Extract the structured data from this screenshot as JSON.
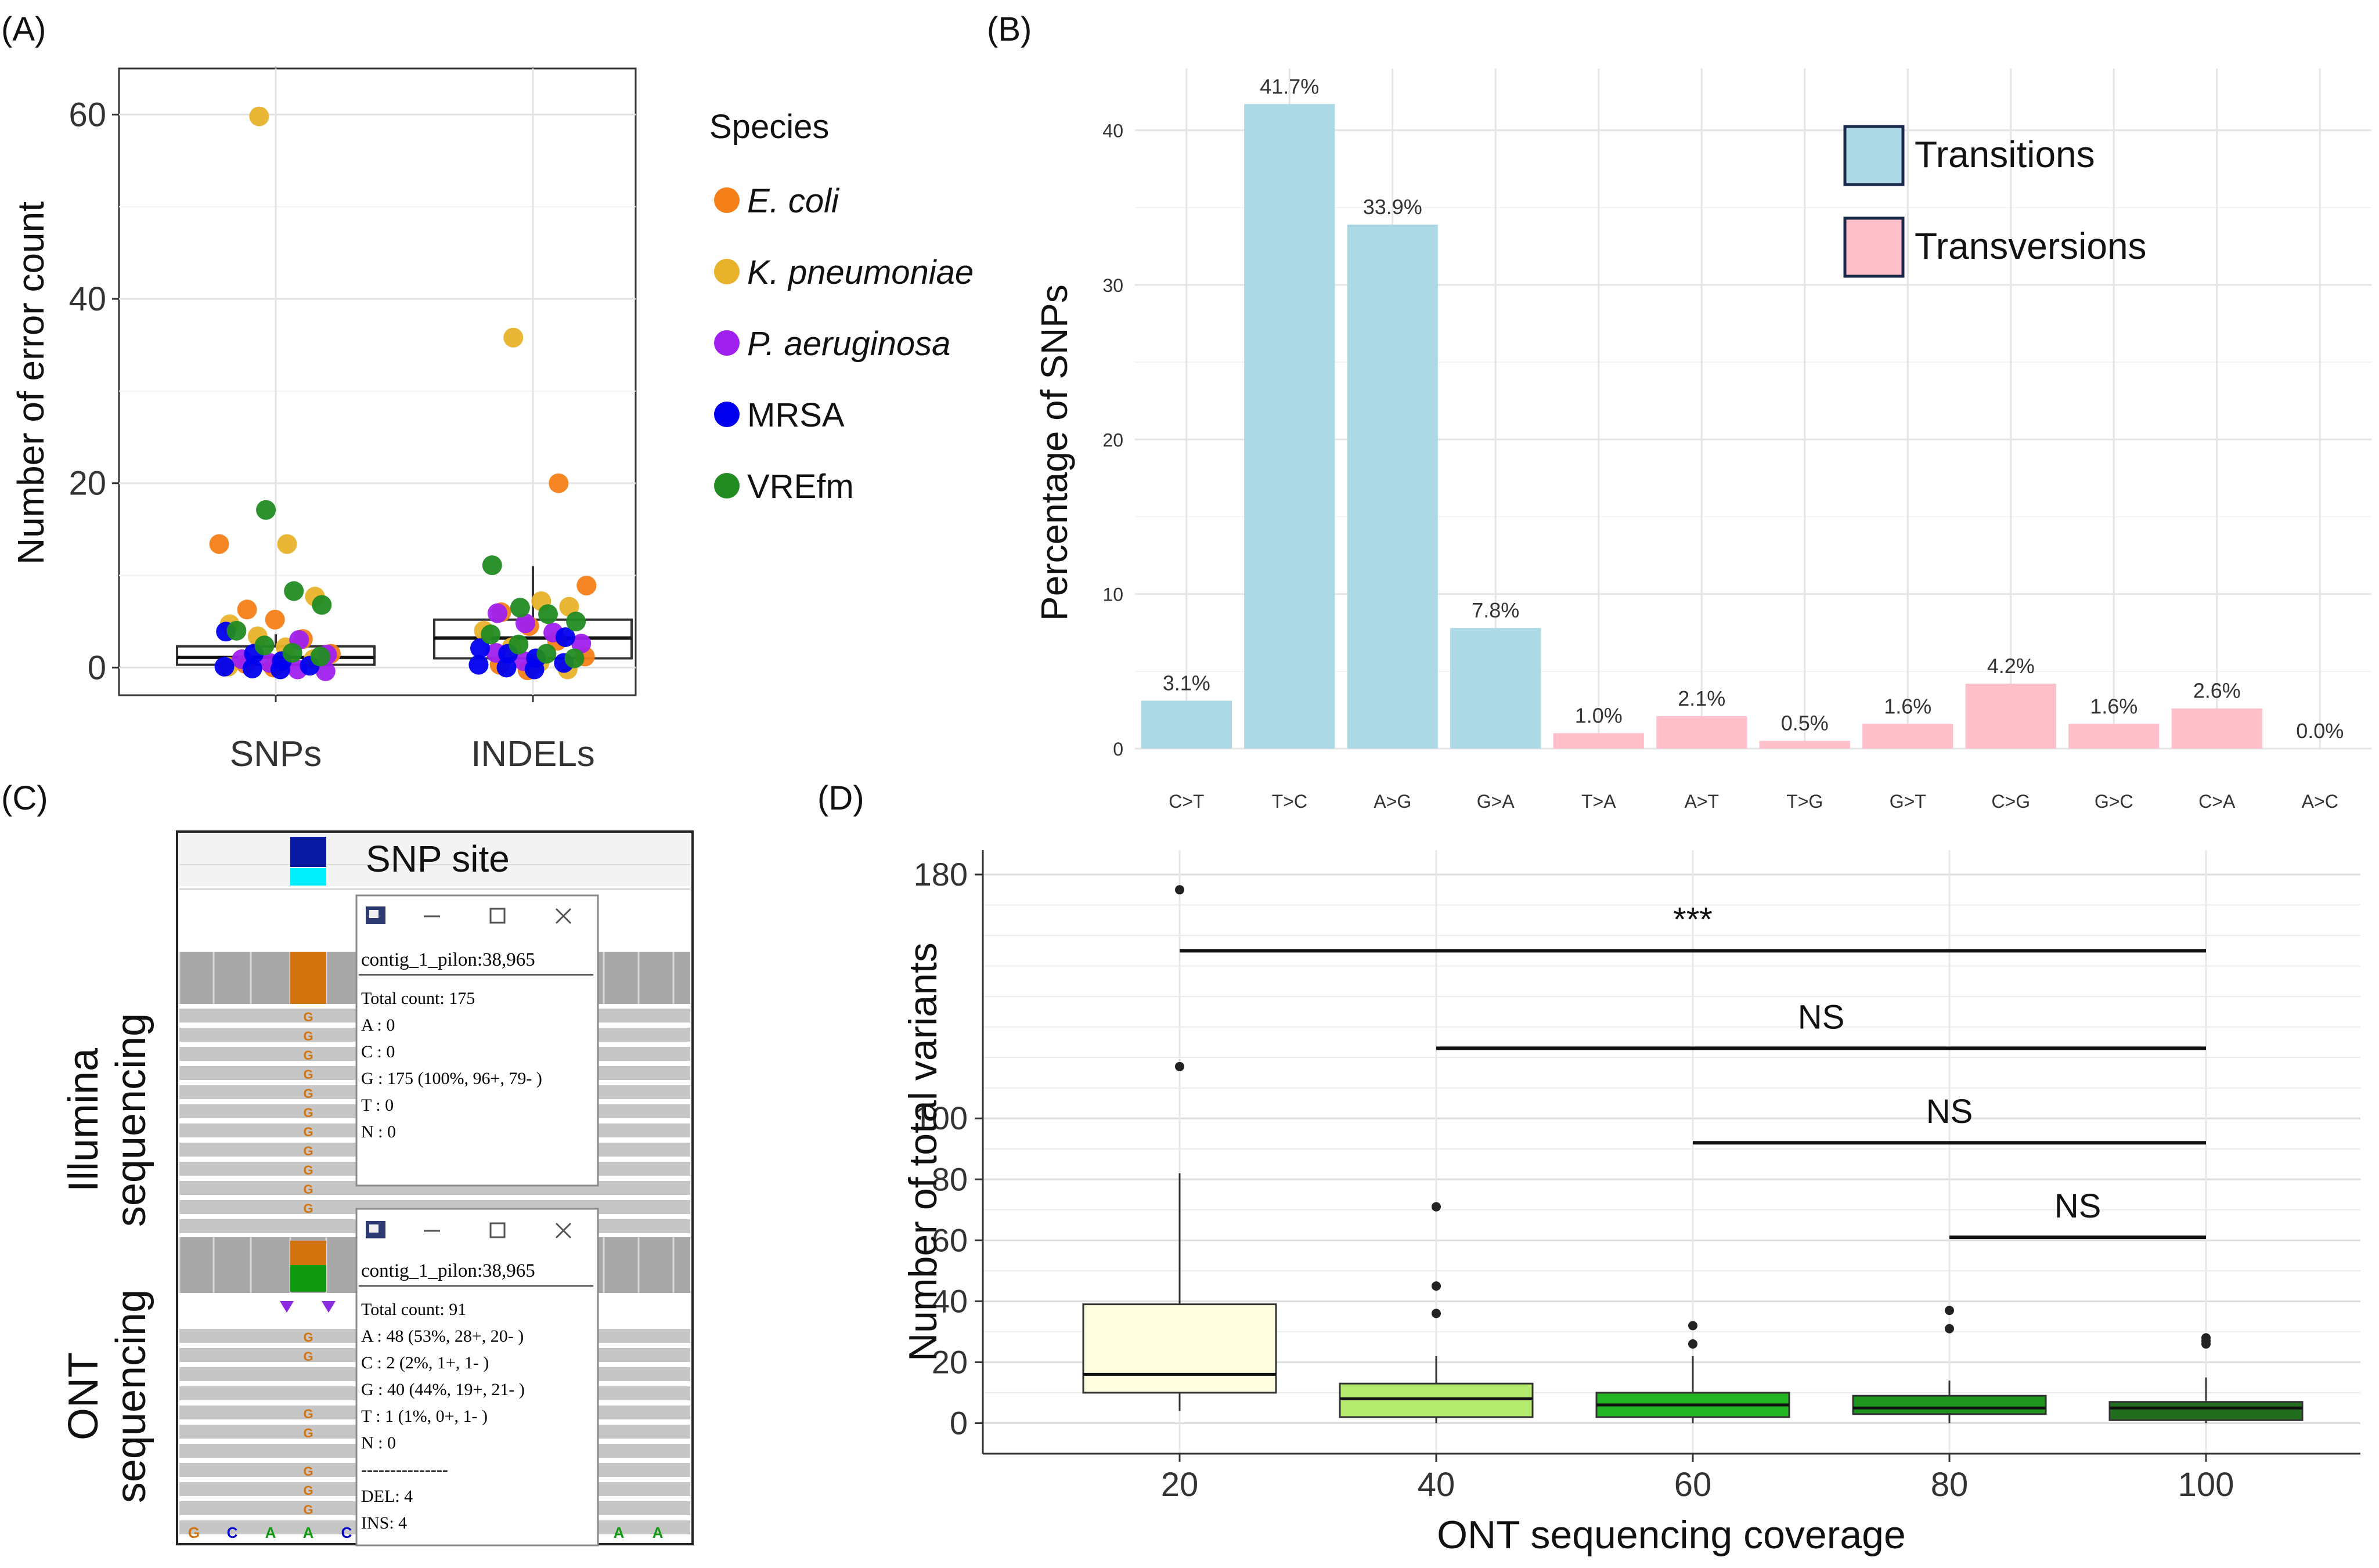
{
  "panel_labels": {
    "a": "(A)",
    "b": "(B)",
    "c": "(C)",
    "d": "(D)"
  },
  "chart_data": [
    {
      "type": "scatter",
      "panel": "(A)",
      "ylabel": "Number of error count",
      "xlabel": "",
      "categories": [
        "SNPs",
        "INDELs"
      ],
      "ylim": [
        -3,
        65
      ],
      "yticks": [
        0,
        20,
        40,
        60
      ],
      "grid": true,
      "legend": {
        "title": "Species",
        "position": "right"
      },
      "series": [
        {
          "name": "E. coli",
          "italic": true,
          "color": "#F57F17",
          "points": [
            [
              "SNPs",
              13.4
            ],
            [
              "SNPs",
              6.3
            ],
            [
              "SNPs",
              5.2
            ],
            [
              "SNPs",
              3.1
            ],
            [
              "SNPs",
              1.5
            ],
            [
              "SNPs",
              0.4
            ],
            [
              "SNPs",
              0.0
            ],
            [
              "INDELs",
              20
            ],
            [
              "INDELs",
              8.9
            ],
            [
              "INDELs",
              6.0
            ],
            [
              "INDELs",
              4.5
            ],
            [
              "INDELs",
              2.9
            ],
            [
              "INDELs",
              1.2
            ],
            [
              "INDELs",
              0.3
            ],
            [
              "INDELs",
              -0.3
            ]
          ]
        },
        {
          "name": "K. pneumoniae",
          "italic": true,
          "color": "#E8B22A",
          "points": [
            [
              "SNPs",
              59.8
            ],
            [
              "SNPs",
              13.4
            ],
            [
              "SNPs",
              7.7
            ],
            [
              "SNPs",
              4.7
            ],
            [
              "SNPs",
              3.4
            ],
            [
              "SNPs",
              2.2
            ],
            [
              "SNPs",
              0.9
            ],
            [
              "SNPs",
              0.1
            ],
            [
              "INDELs",
              35.8
            ],
            [
              "INDELs",
              7.2
            ],
            [
              "INDELs",
              6.6
            ],
            [
              "INDELs",
              4.0
            ],
            [
              "INDELs",
              2.2
            ],
            [
              "INDELs",
              0.6
            ],
            [
              "INDELs",
              -0.2
            ]
          ]
        },
        {
          "name": "P. aeruginosa",
          "italic": true,
          "color": "#A020F0",
          "points": [
            [
              "SNPs",
              3.0
            ],
            [
              "SNPs",
              1.4
            ],
            [
              "SNPs",
              0.9
            ],
            [
              "SNPs",
              0.5
            ],
            [
              "SNPs",
              -0.2
            ],
            [
              "SNPs",
              -0.4
            ],
            [
              "INDELs",
              5.9
            ],
            [
              "INDELs",
              4.8
            ],
            [
              "INDELs",
              3.8
            ],
            [
              "INDELs",
              2.6
            ],
            [
              "INDELs",
              1.6
            ],
            [
              "INDELs",
              0.7
            ]
          ]
        },
        {
          "name": "MRSA",
          "italic": false,
          "color": "#0000EE",
          "points": [
            [
              "SNPs",
              3.9
            ],
            [
              "SNPs",
              1.5
            ],
            [
              "SNPs",
              0.7
            ],
            [
              "SNPs",
              0.2
            ],
            [
              "SNPs",
              0.1
            ],
            [
              "SNPs",
              -0.1
            ],
            [
              "SNPs",
              -0.2
            ],
            [
              "INDELs",
              3.3
            ],
            [
              "INDELs",
              2.1
            ],
            [
              "INDELs",
              1.5
            ],
            [
              "INDELs",
              1.0
            ],
            [
              "INDELs",
              0.5
            ],
            [
              "INDELs",
              0.3
            ],
            [
              "INDELs",
              0.0
            ],
            [
              "INDELs",
              -0.2
            ]
          ]
        },
        {
          "name": "VREfm",
          "italic": false,
          "color": "#228B22",
          "points": [
            [
              "SNPs",
              17.1
            ],
            [
              "SNPs",
              8.3
            ],
            [
              "SNPs",
              6.8
            ],
            [
              "SNPs",
              4.0
            ],
            [
              "SNPs",
              2.4
            ],
            [
              "SNPs",
              1.6
            ],
            [
              "SNPs",
              1.2
            ],
            [
              "INDELs",
              11.1
            ],
            [
              "INDELs",
              6.5
            ],
            [
              "INDELs",
              5.8
            ],
            [
              "INDELs",
              5.0
            ],
            [
              "INDELs",
              3.6
            ],
            [
              "INDELs",
              2.5
            ],
            [
              "INDELs",
              1.5
            ],
            [
              "INDELs",
              1.0
            ]
          ]
        }
      ],
      "boxes": [
        {
          "category": "SNPs",
          "q1": 0.3,
          "median": 1.1,
          "q3": 2.3,
          "whisker_high": 3.6
        },
        {
          "category": "INDELs",
          "q1": 1.0,
          "median": 3.2,
          "q3": 5.2,
          "whisker_high": 11.0
        }
      ]
    },
    {
      "type": "bar",
      "panel": "(B)",
      "ylabel": "Percentage of SNPs",
      "xlabel": "",
      "categories": [
        "C>T",
        "T>C",
        "A>G",
        "G>A",
        "T>A",
        "A>T",
        "T>G",
        "G>T",
        "C>G",
        "G>C",
        "C>A",
        "A>C"
      ],
      "values": [
        3.1,
        41.7,
        33.9,
        7.8,
        1.0,
        2.1,
        0.5,
        1.6,
        4.2,
        1.6,
        2.6,
        0.0
      ],
      "labels": [
        "3.1%",
        "41.7%",
        "33.9%",
        "7.8%",
        "1.0%",
        "2.1%",
        "0.5%",
        "1.6%",
        "4.2%",
        "1.6%",
        "2.6%",
        "0.0%"
      ],
      "groups": [
        "Transitions",
        "Transitions",
        "Transitions",
        "Transitions",
        "Transversions",
        "Transversions",
        "Transversions",
        "Transversions",
        "Transversions",
        "Transversions",
        "Transversions",
        "Transversions"
      ],
      "ylim": [
        0,
        44
      ],
      "yticks": [
        0,
        10,
        20,
        30,
        40
      ],
      "grid": true,
      "legend": {
        "position": "top-right",
        "items": [
          {
            "name": "Transitions",
            "color": "#ADD8E6"
          },
          {
            "name": "Transversions",
            "color": "#FFC0CB"
          }
        ]
      }
    },
    {
      "type": "box",
      "panel": "(D)",
      "xlabel": "ONT sequencing coverage",
      "ylabel": "Number of total variants",
      "categories": [
        "20",
        "40",
        "60",
        "80",
        "100"
      ],
      "yticks": [
        0,
        20,
        40,
        60,
        80,
        100,
        180
      ],
      "ylim": [
        -10,
        188
      ],
      "grid": true,
      "boxes": [
        {
          "x": "20",
          "q1": 10,
          "median": 16,
          "q3": 39,
          "whisker_low": 4,
          "whisker_high": 82,
          "outliers": [
            117,
            175
          ],
          "color": "#FFFFE0"
        },
        {
          "x": "40",
          "q1": 2,
          "median": 8,
          "q3": 13,
          "whisker_low": 0,
          "whisker_high": 22,
          "outliers": [
            36,
            45,
            71
          ],
          "color": "#B4EB6E"
        },
        {
          "x": "60",
          "q1": 2,
          "median": 6,
          "q3": 10,
          "whisker_low": 0,
          "whisker_high": 22,
          "outliers": [
            26,
            32
          ],
          "color": "#22B422"
        },
        {
          "x": "80",
          "q1": 3,
          "median": 5,
          "q3": 9,
          "whisker_low": 0,
          "whisker_high": 14,
          "outliers": [
            31,
            37
          ],
          "color": "#1E961E"
        },
        {
          "x": "100",
          "q1": 1,
          "median": 5,
          "q3": 7,
          "whisker_low": 0,
          "whisker_high": 15,
          "outliers": [
            26,
            27,
            28
          ],
          "color": "#236E1E"
        }
      ],
      "comparisons": [
        {
          "from": "20",
          "to": "100",
          "label": "***"
        },
        {
          "from": "40",
          "to": "100",
          "label": "NS"
        },
        {
          "from": "60",
          "to": "100",
          "label": "NS"
        },
        {
          "from": "80",
          "to": "100",
          "label": "NS"
        }
      ]
    }
  ],
  "igv": {
    "snp_site_label": "SNP site",
    "illumina_label_1": "Illumina",
    "illumina_label_2": "sequencing",
    "ont_label_1": "ONT",
    "ont_label_2": "sequencing",
    "popup1": {
      "header": "contig_1_pilon:38,965",
      "lines": [
        "Total count: 175",
        "A : 0",
        "C : 0",
        "G : 175 (100%, 96+, 79- )",
        "T : 0",
        "N : 0"
      ]
    },
    "popup2": {
      "header": "contig_1_pilon:38,965",
      "lines": [
        "Total count: 91",
        "A : 48 (53%, 28+, 20- )",
        "C : 2 (2%, 1+, 1- )",
        "G : 40 (44%, 19+, 21- )",
        "T : 1 (1%, 0+, 1- )",
        "N : 0",
        "---------------",
        "DEL: 4",
        "INS: 4"
      ]
    },
    "read_base": "G",
    "ref_bases_left": [
      "G",
      "C",
      "A",
      "A",
      "C"
    ],
    "ref_bases_right": [
      "A",
      "A"
    ]
  }
}
